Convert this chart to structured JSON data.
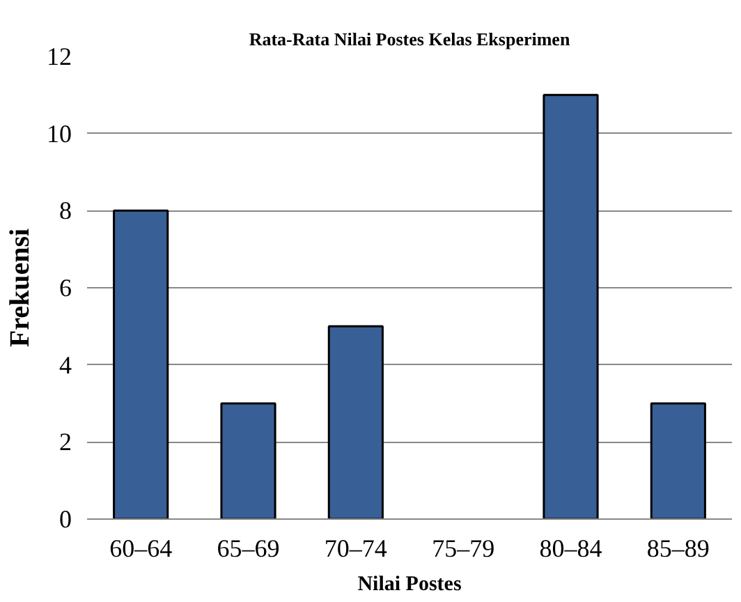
{
  "chart_data": {
    "type": "bar",
    "title": "Rata-Rata Nilai Postes Kelas Eksperimen",
    "xlabel": "Nilai Postes",
    "ylabel": "Frekuensi",
    "categories": [
      "60–64",
      "65–69",
      "70–74",
      "75–79",
      "80–84",
      "85–89"
    ],
    "values": [
      8,
      3,
      5,
      0,
      11,
      3
    ],
    "color": "#386096",
    "ylim": [
      0,
      12
    ],
    "yticks": [
      0,
      2,
      4,
      6,
      8,
      10,
      12
    ],
    "grid": "y"
  }
}
